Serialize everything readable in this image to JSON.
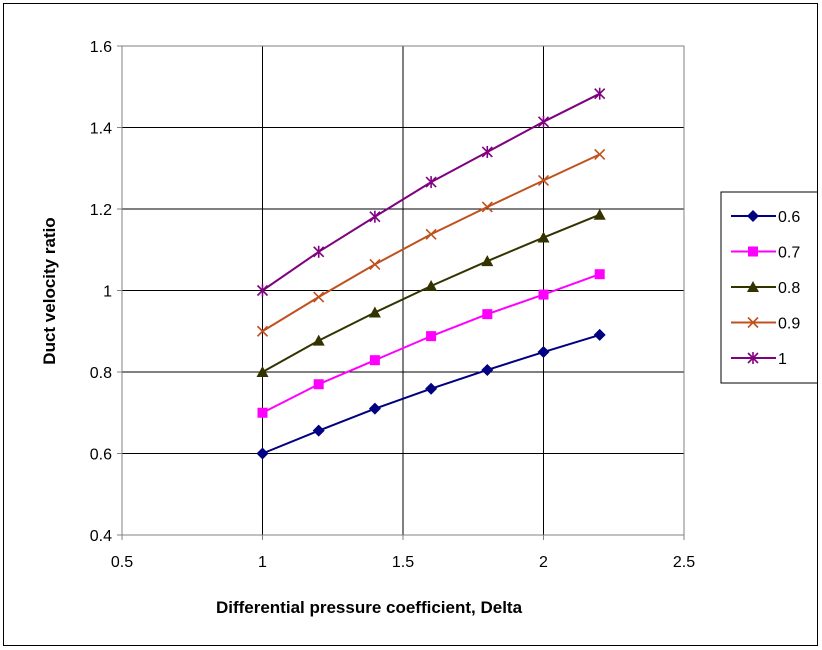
{
  "chart_data": {
    "type": "line",
    "title": "",
    "xlabel": "Differential pressure coefficient, Delta",
    "ylabel": "Duct velocity ratio",
    "xlim": [
      0.5,
      2.5
    ],
    "ylim": [
      0.4,
      1.6
    ],
    "x_ticks": [
      "0.5",
      "1",
      "1.5",
      "2",
      "2.5"
    ],
    "y_ticks": [
      "0.4",
      "0.6",
      "0.8",
      "1",
      "1.2",
      "1.4",
      "1.6"
    ],
    "grid": "on",
    "legend_position": "right",
    "x": [
      1.0,
      1.2,
      1.4,
      1.6,
      1.8,
      2.0,
      2.2
    ],
    "series": [
      {
        "name": "0.6",
        "color": "#000080",
        "marker": "diamond",
        "values": [
          0.6,
          0.656,
          0.71,
          0.759,
          0.805,
          0.849,
          0.891
        ]
      },
      {
        "name": "0.7",
        "color": "#FF00FF",
        "marker": "square",
        "values": [
          0.7,
          0.77,
          0.829,
          0.888,
          0.942,
          0.99,
          1.04
        ]
      },
      {
        "name": "0.8",
        "color": "#333300",
        "marker": "triangle",
        "values": [
          0.8,
          0.877,
          0.946,
          1.011,
          1.072,
          1.13,
          1.186
        ]
      },
      {
        "name": "0.9",
        "color": "#C0501E",
        "marker": "x",
        "values": [
          0.9,
          0.984,
          1.064,
          1.138,
          1.205,
          1.27,
          1.334
        ]
      },
      {
        "name": "1",
        "color": "#800080",
        "marker": "star",
        "values": [
          1.0,
          1.095,
          1.181,
          1.266,
          1.34,
          1.414,
          1.483
        ]
      }
    ]
  }
}
